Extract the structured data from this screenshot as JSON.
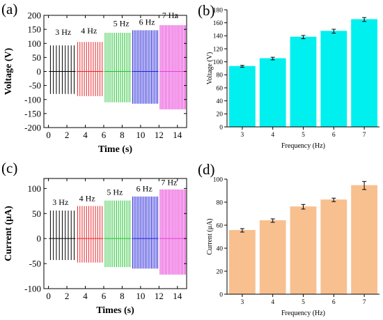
{
  "panels": {
    "a": {
      "label": "(a)"
    },
    "b": {
      "label": "(b)"
    },
    "c": {
      "label": "(c)"
    },
    "d": {
      "label": "(d)"
    }
  },
  "chart_data": [
    {
      "id": "a",
      "type": "line",
      "xlabel": "Time (s)",
      "ylabel": "Voltage (V)",
      "xlim": [
        -0.5,
        15
      ],
      "ylim": [
        -200,
        200
      ],
      "xticks": [
        0,
        2,
        4,
        6,
        8,
        10,
        12,
        14
      ],
      "yticks": [
        -200,
        -150,
        -100,
        -50,
        0,
        50,
        100,
        150,
        200
      ],
      "series": [
        {
          "label": "3 Hz",
          "color": "#000000",
          "t_start": 0.05,
          "t_end": 2.95,
          "freq": 3,
          "peak": 93,
          "trough": -80,
          "label_pos": [
            1.6,
            130
          ]
        },
        {
          "label": "4 Hz",
          "color": "#e8262b",
          "t_start": 3.05,
          "t_end": 5.95,
          "freq": 4,
          "peak": 105,
          "trough": -88,
          "label_pos": [
            4.4,
            135
          ]
        },
        {
          "label": "5 Hz",
          "color": "#22c232",
          "t_start": 6.05,
          "t_end": 8.95,
          "freq": 5,
          "peak": 138,
          "trough": -110,
          "label_pos": [
            7.9,
            162
          ]
        },
        {
          "label": "6 Hz",
          "color": "#2323d8",
          "t_start": 9.05,
          "t_end": 11.95,
          "freq": 6,
          "peak": 147,
          "trough": -115,
          "label_pos": [
            10.7,
            167
          ]
        },
        {
          "label": "7 Hz",
          "color": "#e83fd8",
          "t_start": 12.05,
          "t_end": 14.95,
          "freq": 7,
          "peak": 165,
          "trough": -135,
          "label_pos": [
            13.2,
            190
          ]
        }
      ]
    },
    {
      "id": "b",
      "type": "bar",
      "xlabel": "Frequency (Hz)",
      "ylabel": "Voltage (V)",
      "categories": [
        "3",
        "4",
        "5",
        "6",
        "7"
      ],
      "values": [
        93,
        105,
        138,
        147,
        165
      ],
      "errors": [
        1.5,
        2,
        2.5,
        3,
        3
      ],
      "ylim": [
        0,
        180
      ],
      "yticks": [
        0,
        20,
        40,
        60,
        80,
        100,
        120,
        140,
        160,
        180
      ],
      "color": "#00f0f0"
    },
    {
      "id": "c",
      "type": "line",
      "xlabel": "Times (s)",
      "ylabel": "Current (μA)",
      "xlim": [
        -0.5,
        15
      ],
      "ylim": [
        -100,
        120
      ],
      "xticks": [
        0,
        2,
        4,
        6,
        8,
        10,
        12,
        14
      ],
      "yticks": [
        -100,
        -50,
        0,
        50,
        100
      ],
      "series": [
        {
          "label": "3 Hz",
          "color": "#000000",
          "t_start": 0.05,
          "t_end": 2.95,
          "freq": 3,
          "peak": 56,
          "trough": -43,
          "label_pos": [
            1.3,
            67
          ]
        },
        {
          "label": "4 Hz",
          "color": "#e8262b",
          "t_start": 3.05,
          "t_end": 5.95,
          "freq": 4,
          "peak": 65,
          "trough": -48,
          "label_pos": [
            4.2,
            75
          ]
        },
        {
          "label": "5 Hz",
          "color": "#22c232",
          "t_start": 6.05,
          "t_end": 8.95,
          "freq": 5,
          "peak": 76,
          "trough": -57,
          "label_pos": [
            7.2,
            87
          ]
        },
        {
          "label": "6 Hz",
          "color": "#2323d8",
          "t_start": 9.05,
          "t_end": 11.95,
          "freq": 6,
          "peak": 84,
          "trough": -60,
          "label_pos": [
            10.4,
            94
          ]
        },
        {
          "label": "7 Hz",
          "color": "#e83fd8",
          "t_start": 12.05,
          "t_end": 14.95,
          "freq": 7,
          "peak": 98,
          "trough": -72,
          "label_pos": [
            13.1,
            107
          ]
        }
      ]
    },
    {
      "id": "d",
      "type": "bar",
      "xlabel": "Frequency (Hz)",
      "ylabel": "Current (μA)",
      "categories": [
        "3",
        "4",
        "5",
        "6",
        "7"
      ],
      "values": [
        55.5,
        64,
        76,
        82,
        94.5
      ],
      "errors": [
        1.5,
        1.5,
        2,
        1.5,
        3.5
      ],
      "ylim": [
        0,
        100
      ],
      "yticks": [
        0,
        20,
        40,
        60,
        80,
        100
      ],
      "color": "#f8c08f"
    }
  ]
}
